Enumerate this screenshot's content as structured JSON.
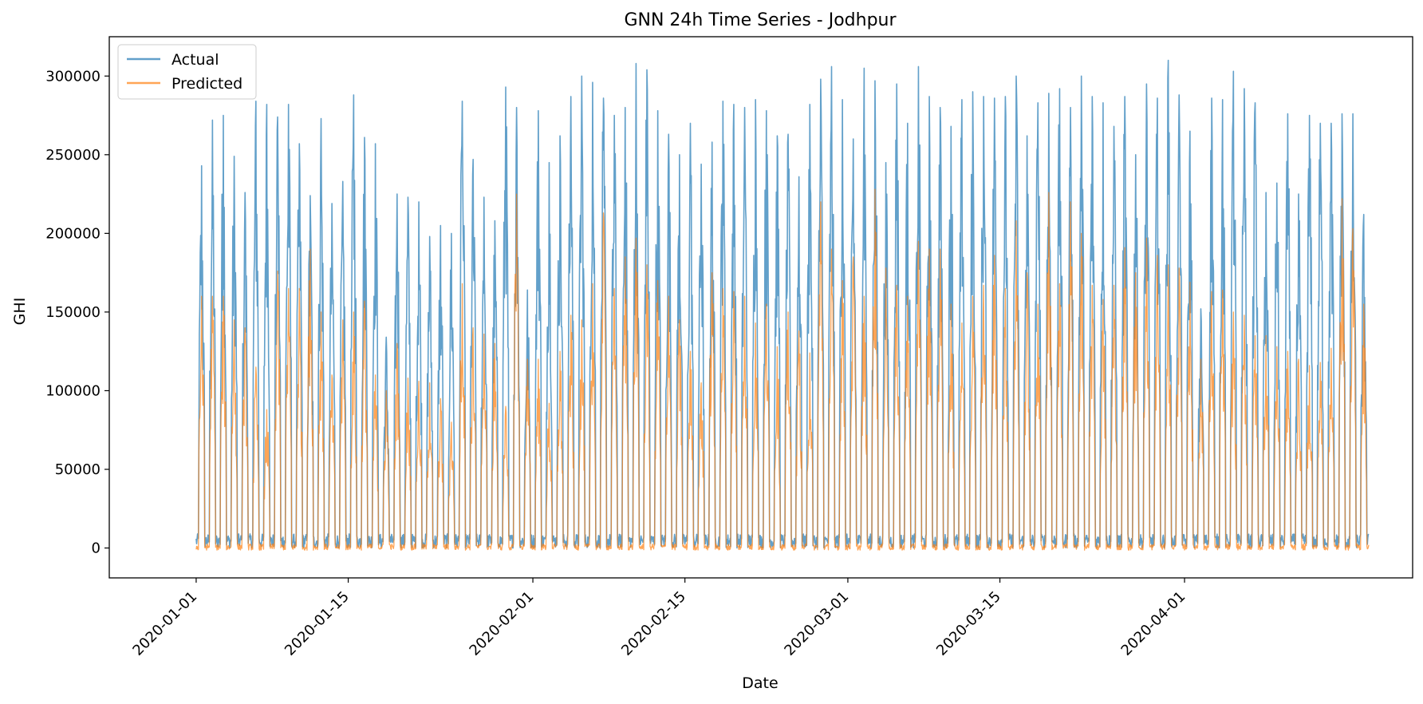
{
  "chart_data": {
    "type": "line",
    "title": "GNN 24h Time Series - Jodhpur",
    "xlabel": "Date",
    "ylabel": "GHI",
    "x_range": [
      "2019-12-24",
      "2020-04-22"
    ],
    "ylim": [
      -19000,
      325000
    ],
    "x_ticks": [
      "2020-01-01",
      "2020-01-15",
      "2020-02-01",
      "2020-02-15",
      "2020-03-01",
      "2020-03-15",
      "2020-04-01"
    ],
    "y_ticks": [
      0,
      50000,
      100000,
      150000,
      200000,
      250000,
      300000
    ],
    "y_tick_labels": [
      "0",
      "50000",
      "100000",
      "150000",
      "200000",
      "250000",
      "300000"
    ],
    "grid": false,
    "legend_position": "top-left",
    "series": [
      {
        "name": "Actual",
        "color": "#1f77b4",
        "opacity": 0.7,
        "x_start": "2020-01-01",
        "x_step": "1 day",
        "daily_peak": [
          243000,
          272000,
          275000,
          249000,
          226000,
          284000,
          282000,
          274000,
          282000,
          257000,
          224000,
          273000,
          219000,
          233000,
          288000,
          261000,
          257000,
          134000,
          225000,
          223000,
          220000,
          198000,
          205000,
          200000,
          284000,
          247000,
          223000,
          208000,
          293000,
          280000,
          164000,
          278000,
          245000,
          262000,
          287000,
          300000,
          296000,
          286000,
          275000,
          280000,
          308000,
          304000,
          278000,
          263000,
          250000,
          270000,
          244000,
          258000,
          284000,
          282000,
          280000,
          285000,
          278000,
          262000,
          263000,
          236000,
          282000,
          298000,
          306000,
          285000,
          260000,
          305000,
          297000,
          245000,
          295000,
          270000,
          306000,
          287000,
          280000,
          268000,
          285000,
          290000,
          287000,
          286000,
          287000,
          300000,
          262000,
          283000,
          289000,
          292000,
          280000,
          300000,
          287000,
          283000,
          268000,
          287000,
          250000,
          295000,
          286000,
          310000,
          288000,
          265000,
          152000,
          286000,
          285000,
          303000,
          292000,
          283000,
          226000,
          232000,
          276000,
          225000,
          275000,
          270000,
          270000,
          276000,
          276000,
          212000
        ]
      },
      {
        "name": "Predicted",
        "color": "#ff7f0e",
        "opacity": 0.7,
        "x_start": "2020-01-01",
        "x_step": "1 day",
        "daily_peak": [
          160000,
          160000,
          160000,
          145000,
          140000,
          115000,
          88000,
          176000,
          165000,
          165000,
          190000,
          150000,
          110000,
          145000,
          150000,
          157000,
          110000,
          100000,
          130000,
          108000,
          106000,
          105000,
          95000,
          80000,
          168000,
          140000,
          136000,
          130000,
          90000,
          225000,
          120000,
          120000,
          92000,
          125000,
          148000,
          145000,
          168000,
          213000,
          165000,
          185000,
          197000,
          180000,
          170000,
          160000,
          145000,
          125000,
          105000,
          175000,
          165000,
          163000,
          160000,
          143000,
          155000,
          128000,
          150000,
          138000,
          124000,
          220000,
          190000,
          170000,
          185000,
          160000,
          228000,
          178000,
          167000,
          160000,
          195000,
          190000,
          190000,
          155000,
          143000,
          160000,
          167000,
          186000,
          165000,
          208000,
          175000,
          155000,
          226000,
          168000,
          220000,
          200000,
          167000,
          158000,
          167000,
          191000,
          175000,
          197000,
          186000,
          180000,
          178000,
          169000,
          120000,
          163000,
          164000,
          150000,
          148000,
          135000,
          135000,
          128000,
          125000,
          120000,
          116000,
          118000,
          127000,
          222000,
          203000,
          155000
        ]
      }
    ]
  }
}
